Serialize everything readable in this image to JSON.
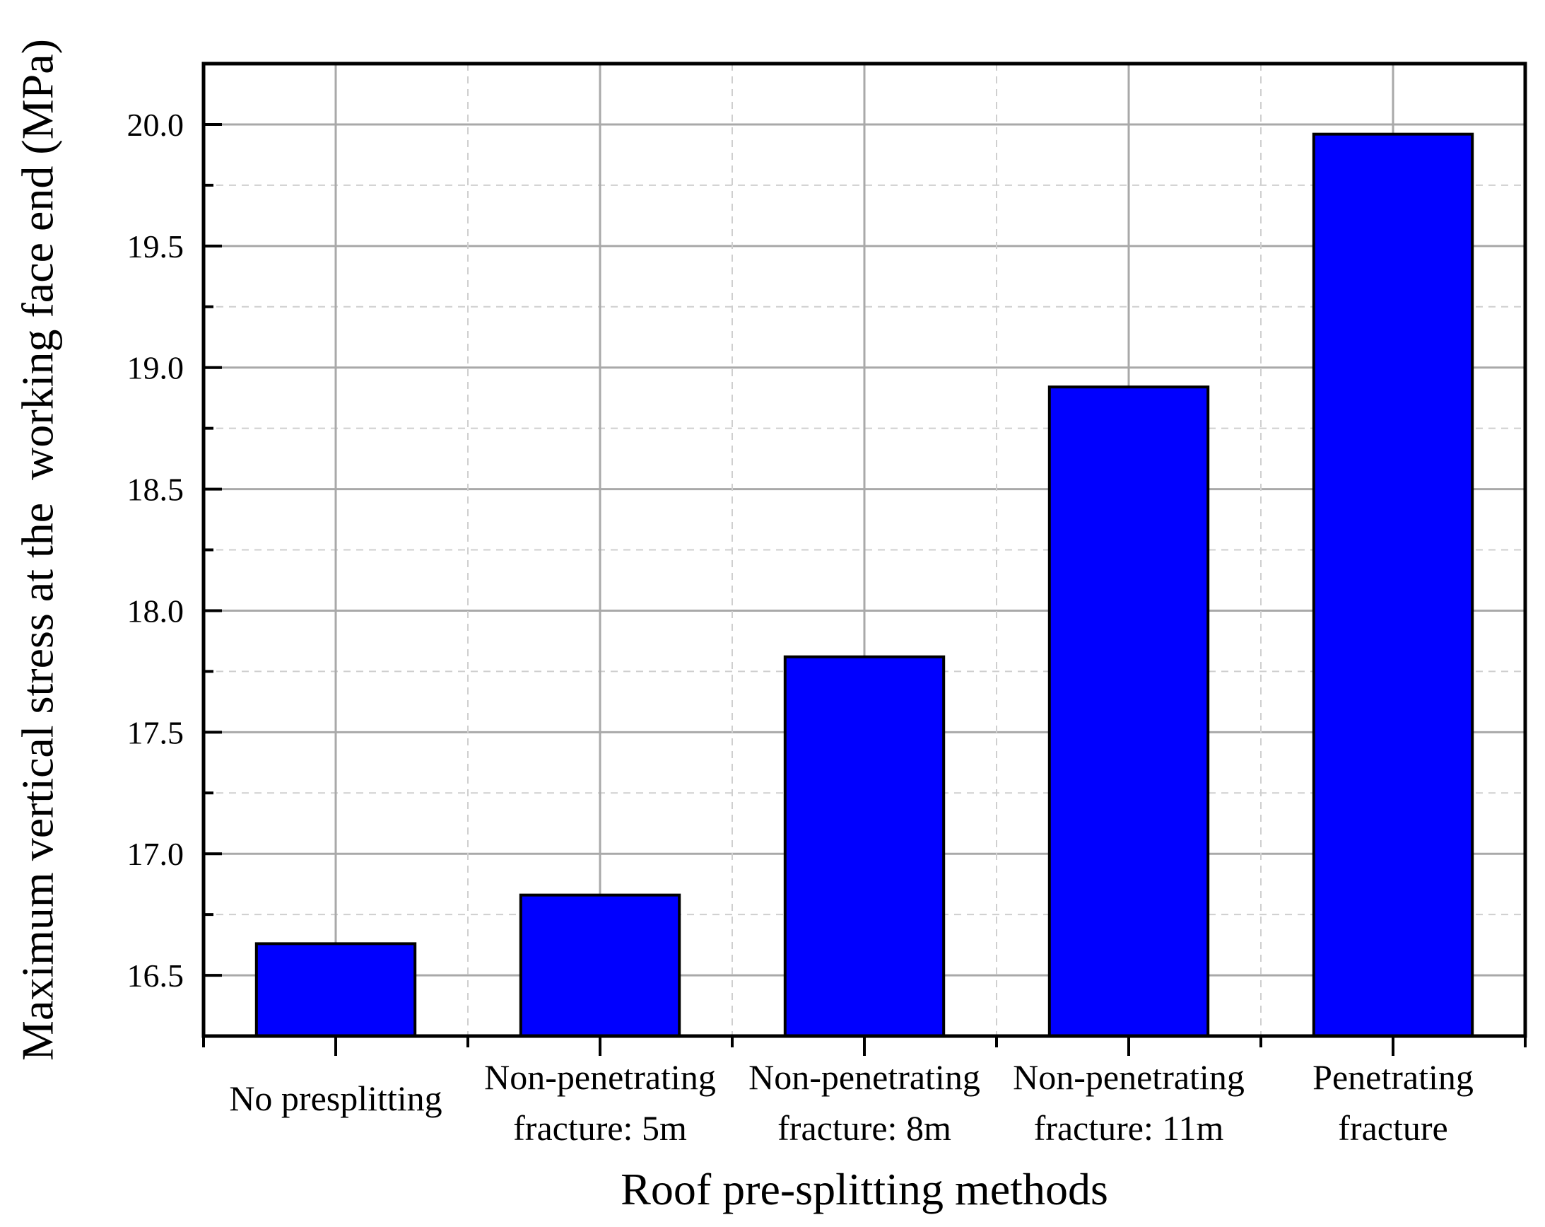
{
  "chart_data": {
    "type": "bar",
    "xlabel": "Roof pre-splitting methods",
    "ylabel": "Maximum vertical stress at the  working face end (MPa)",
    "categories": [
      [
        "No presplitting"
      ],
      [
        "Non-penetrating",
        "fracture: 5m"
      ],
      [
        "Non-penetrating",
        "fracture: 8m"
      ],
      [
        "Non-penetrating",
        "fracture: 11m"
      ],
      [
        "Penetrating",
        "fracture"
      ]
    ],
    "values": [
      16.63,
      16.83,
      17.81,
      18.92,
      19.96
    ],
    "ylim": [
      16.25,
      20.25
    ],
    "yticks": [
      "16.5",
      "17.0",
      "17.5",
      "18.0",
      "18.5",
      "19.0",
      "19.5",
      "20.0"
    ],
    "grid": true,
    "bar_color": "#0000ff"
  }
}
